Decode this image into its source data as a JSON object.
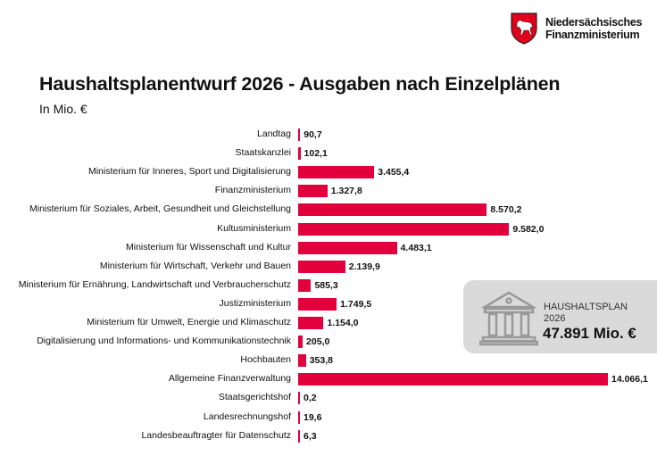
{
  "header": {
    "org_line1": "Niedersächsisches",
    "org_line2": "Finanzministerium"
  },
  "total_box": {
    "label_line1": "HAUSHALTSPLAN",
    "label_line2": "2026",
    "amount": "47.891 Mio. €",
    "icon": "bank-building-icon"
  },
  "colors": {
    "bar": "#e2003c",
    "panel": "#dadada",
    "logo_red": "#e2001a"
  },
  "chart_data": {
    "type": "bar",
    "orientation": "horizontal",
    "title": "Haushaltsplanentwurf 2026 - Ausgaben nach Einzelplänen",
    "subtitle": "In Mio. €",
    "xlim": [
      0,
      14066.1
    ],
    "grid": false,
    "categories": [
      "Landtag",
      "Staatskanzlei",
      "Ministerium für Inneres, Sport und Digitalisierung",
      "Finanzministerium",
      "Ministerium für Soziales, Arbeit, Gesundheit und Gleichstellung",
      "Kultusministerium",
      "Ministerium für Wissenschaft und Kultur",
      "Ministerium für Wirtschaft, Verkehr und Bauen",
      "Ministerium für Ernährung, Landwirtschaft und Verbraucherschutz",
      "Justizministerium",
      "Ministerium für Umwelt, Energie und Klimaschutz",
      "Digitalisierung und Informations- und Kommunikationstechnik",
      "Hochbauten",
      "Allgemeine Finanzverwaltung",
      "Staatsgerichtshof",
      "Landesrechnungshof",
      "Landesbeauftragter für Datenschutz"
    ],
    "values": [
      90.7,
      102.1,
      3455.4,
      1327.8,
      8570.2,
      9582.0,
      4483.1,
      2139.9,
      585.3,
      1749.5,
      1154.0,
      205.0,
      353.8,
      14066.1,
      0.2,
      19.6,
      6.3
    ],
    "value_labels": [
      "90,7",
      "102,1",
      "3.455,4",
      "1.327,8",
      "8.570,2",
      "9.582,0",
      "4.483,1",
      "2.139,9",
      "585,3",
      "1.749,5",
      "1.154,0",
      "205,0",
      "353,8",
      "14.066,1",
      "0,2",
      "19,6",
      "6,3"
    ]
  }
}
